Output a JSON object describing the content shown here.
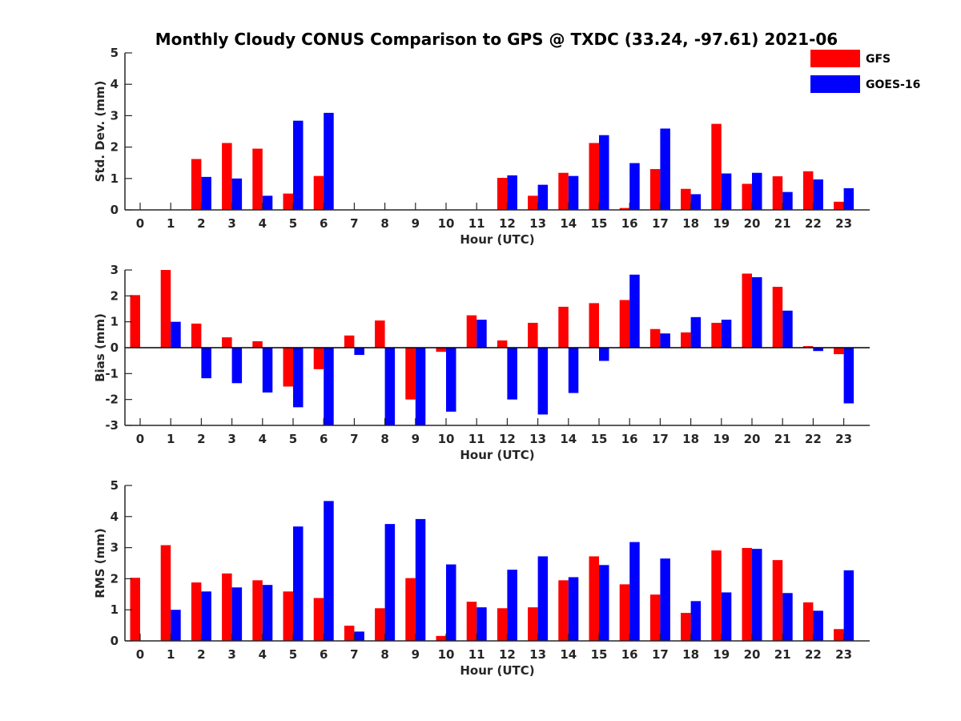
{
  "title": "Monthly Cloudy CONUS Comparison to GPS @ TXDC (33.24, -97.61) 2021-06",
  "legend": {
    "placement": "top-right",
    "entries": [
      {
        "name": "GFS",
        "color": "#ff0000"
      },
      {
        "name": "GOES-16",
        "color": "#0000ff"
      }
    ]
  },
  "chart_data": [
    {
      "type": "bar",
      "xlabel": "Hour (UTC)",
      "ylabel": "Std. Dev. (mm)",
      "ylim": [
        0,
        5
      ],
      "yticks": [
        0,
        1,
        2,
        3,
        4,
        5
      ],
      "categories": [
        "0",
        "1",
        "2",
        "3",
        "4",
        "5",
        "6",
        "7",
        "8",
        "9",
        "10",
        "11",
        "12",
        "13",
        "14",
        "15",
        "16",
        "17",
        "18",
        "19",
        "20",
        "21",
        "22",
        "23"
      ],
      "series": [
        {
          "name": "GFS",
          "color": "#ff0000",
          "values": [
            null,
            null,
            1.62,
            2.13,
            1.95,
            0.52,
            1.08,
            null,
            null,
            null,
            null,
            null,
            1.02,
            0.45,
            1.18,
            2.13,
            0.06,
            1.3,
            0.67,
            2.74,
            0.83,
            1.07,
            1.23,
            0.26
          ]
        },
        {
          "name": "GOES-16",
          "color": "#0000ff",
          "values": [
            null,
            null,
            1.05,
            1.0,
            0.45,
            2.84,
            3.09,
            null,
            null,
            null,
            null,
            null,
            1.1,
            0.8,
            1.08,
            2.38,
            1.49,
            2.59,
            0.5,
            1.16,
            1.18,
            0.57,
            0.97,
            0.69
          ]
        }
      ]
    },
    {
      "type": "bar",
      "xlabel": "Hour (UTC)",
      "ylabel": "Bias (mm)",
      "ylim": [
        -3,
        3
      ],
      "yticks": [
        -3,
        -2,
        -1,
        0,
        1,
        2,
        3
      ],
      "categories": [
        "0",
        "1",
        "2",
        "3",
        "4",
        "5",
        "6",
        "7",
        "8",
        "9",
        "10",
        "11",
        "12",
        "13",
        "14",
        "15",
        "16",
        "17",
        "18",
        "19",
        "20",
        "21",
        "22",
        "23"
      ],
      "series": [
        {
          "name": "GFS",
          "color": "#ff0000",
          "values": [
            2.03,
            3.0,
            0.93,
            0.4,
            0.25,
            -1.5,
            -0.83,
            0.47,
            1.05,
            -2.0,
            -0.16,
            1.25,
            0.28,
            0.96,
            1.58,
            1.72,
            1.84,
            0.72,
            0.59,
            0.96,
            2.86,
            2.35,
            0.06,
            -0.25
          ]
        },
        {
          "name": "GOES-16",
          "color": "#0000ff",
          "values": [
            null,
            1.0,
            -1.18,
            -1.37,
            -1.73,
            -2.3,
            -3.0,
            -0.28,
            -3.0,
            -3.0,
            -2.47,
            1.08,
            -2.0,
            -2.58,
            -1.75,
            -0.51,
            2.82,
            0.55,
            1.18,
            1.08,
            2.72,
            1.43,
            -0.13,
            -2.15
          ]
        }
      ]
    },
    {
      "type": "bar",
      "xlabel": "Hour (UTC)",
      "ylabel": "RMS (mm)",
      "ylim": [
        0,
        5
      ],
      "yticks": [
        0,
        1,
        2,
        3,
        4,
        5
      ],
      "categories": [
        "0",
        "1",
        "2",
        "3",
        "4",
        "5",
        "6",
        "7",
        "8",
        "9",
        "10",
        "11",
        "12",
        "13",
        "14",
        "15",
        "16",
        "17",
        "18",
        "19",
        "20",
        "21",
        "22",
        "23"
      ],
      "series": [
        {
          "name": "GFS",
          "color": "#ff0000",
          "values": [
            2.03,
            3.08,
            1.88,
            2.17,
            1.95,
            1.59,
            1.38,
            0.49,
            1.05,
            2.02,
            0.16,
            1.26,
            1.05,
            1.08,
            1.95,
            2.72,
            1.82,
            1.49,
            0.9,
            2.91,
            2.99,
            2.6,
            1.24,
            0.38
          ]
        },
        {
          "name": "GOES-16",
          "color": "#0000ff",
          "values": [
            null,
            1.0,
            1.59,
            1.72,
            1.8,
            3.68,
            4.5,
            0.3,
            3.76,
            3.92,
            2.46,
            1.08,
            2.29,
            2.72,
            2.05,
            2.44,
            3.18,
            2.65,
            1.28,
            1.56,
            2.96,
            1.54,
            0.97,
            2.27
          ]
        }
      ]
    }
  ]
}
